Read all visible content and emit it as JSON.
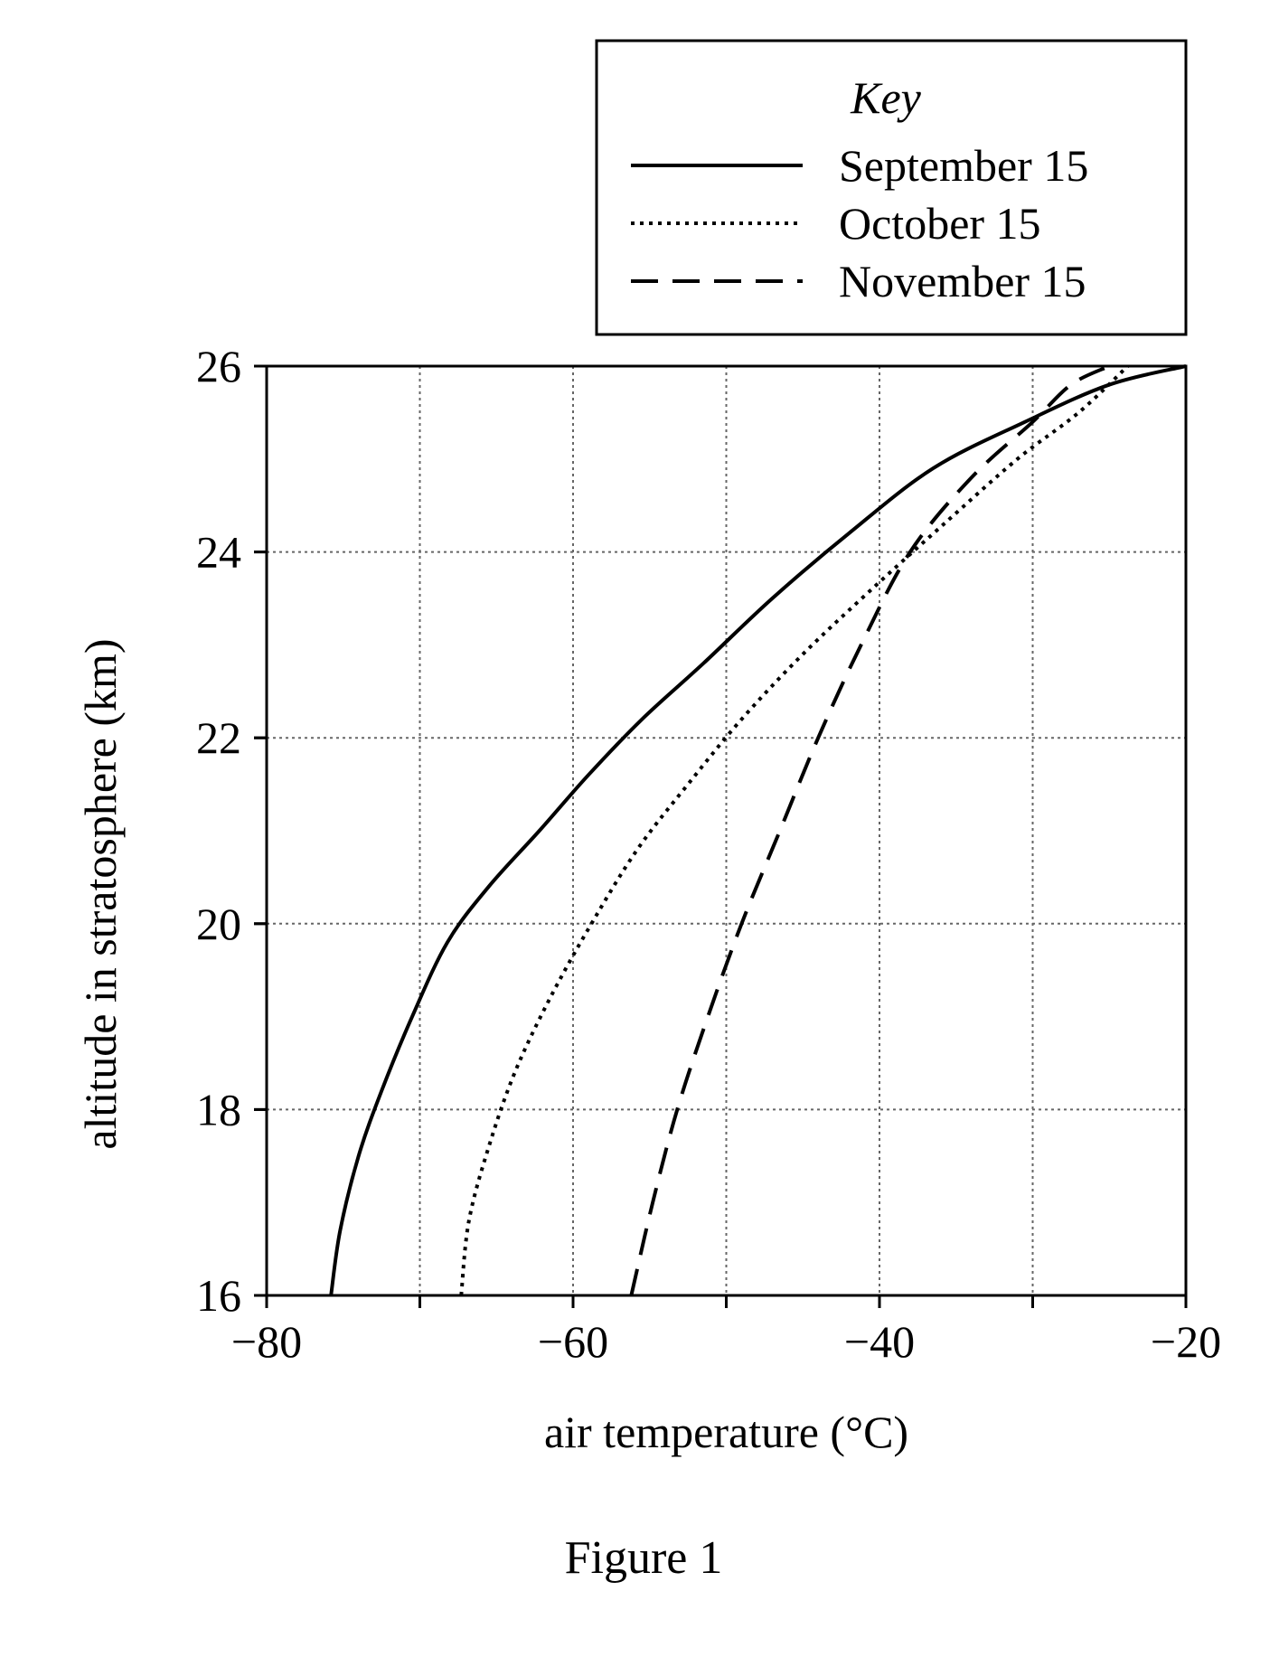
{
  "chart_data": {
    "type": "line",
    "title": "",
    "xlabel": "air temperature (°C)",
    "ylabel": "altitude in stratosphere (km)",
    "xlim": [
      -80,
      -20
    ],
    "ylim": [
      16,
      26
    ],
    "xticks": [
      -80,
      -60,
      -40,
      -20
    ],
    "yticks": [
      16,
      18,
      20,
      22,
      24,
      26
    ],
    "grid_x": [
      -70,
      -60,
      -50,
      -40,
      -30
    ],
    "grid_y": [
      18,
      20,
      22,
      24
    ],
    "grid": true,
    "legend_title": "Key",
    "legend_position": "top-right",
    "series": [
      {
        "name": "September 15",
        "style": "solid",
        "points": [
          [
            -75.8,
            16
          ],
          [
            -75.2,
            16.7
          ],
          [
            -74.0,
            17.5
          ],
          [
            -72.5,
            18.2
          ],
          [
            -70.5,
            19.0
          ],
          [
            -68.2,
            19.8
          ],
          [
            -65.5,
            20.4
          ],
          [
            -62.2,
            21.0
          ],
          [
            -59.0,
            21.6
          ],
          [
            -55.5,
            22.2
          ],
          [
            -51.5,
            22.8
          ],
          [
            -47.0,
            23.5
          ],
          [
            -42.0,
            24.2
          ],
          [
            -36.5,
            24.9
          ],
          [
            -30.5,
            25.4
          ],
          [
            -25.0,
            25.8
          ],
          [
            -20.0,
            26.0
          ]
        ]
      },
      {
        "name": "October 15",
        "style": "dotted",
        "points": [
          [
            -67.3,
            16
          ],
          [
            -66.8,
            16.8
          ],
          [
            -65.5,
            17.6
          ],
          [
            -63.8,
            18.4
          ],
          [
            -61.5,
            19.2
          ],
          [
            -58.8,
            20.0
          ],
          [
            -55.8,
            20.8
          ],
          [
            -52.5,
            21.5
          ],
          [
            -49.0,
            22.2
          ],
          [
            -45.0,
            22.9
          ],
          [
            -40.5,
            23.6
          ],
          [
            -35.8,
            24.3
          ],
          [
            -31.0,
            25.0
          ],
          [
            -27.0,
            25.5
          ],
          [
            -23.8,
            26.0
          ]
        ]
      },
      {
        "name": "November 15",
        "style": "dashed",
        "points": [
          [
            -56.2,
            16
          ],
          [
            -54.8,
            17.0
          ],
          [
            -53.2,
            18.0
          ],
          [
            -51.2,
            19.0
          ],
          [
            -49.0,
            20.0
          ],
          [
            -46.5,
            21.0
          ],
          [
            -44.0,
            22.0
          ],
          [
            -41.2,
            23.0
          ],
          [
            -38.0,
            24.0
          ],
          [
            -34.0,
            24.8
          ],
          [
            -30.0,
            25.4
          ],
          [
            -27.5,
            25.8
          ],
          [
            -25.0,
            26.0
          ]
        ]
      }
    ]
  },
  "caption": "Figure 1"
}
